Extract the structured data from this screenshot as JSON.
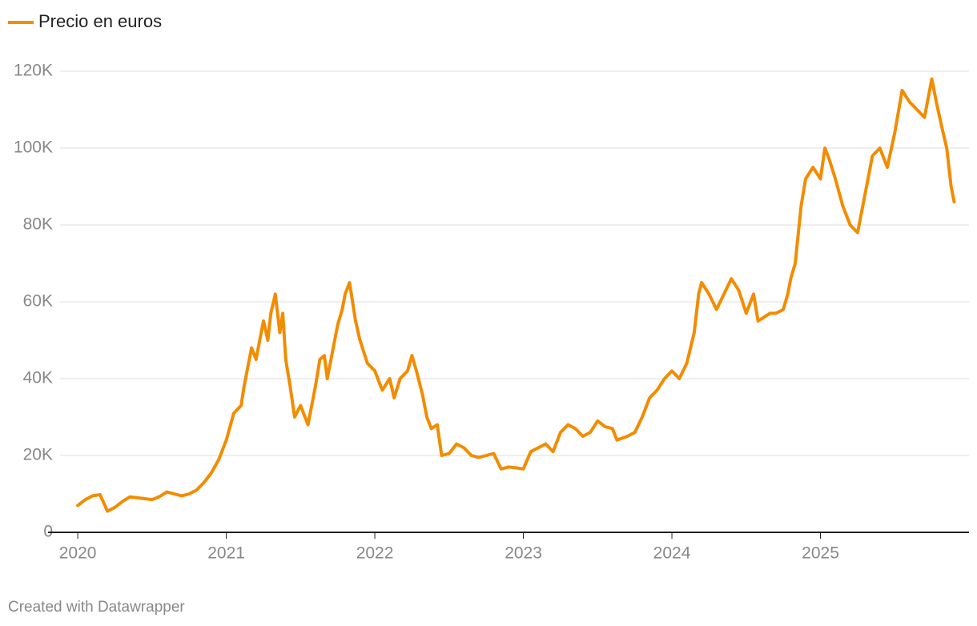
{
  "chart_data": {
    "type": "line",
    "series": [
      {
        "name": "Precio en euros",
        "color": "#f28c00",
        "values": [
          7000,
          8500,
          9500,
          9800,
          5500,
          6500,
          8000,
          9200,
          9000,
          8500,
          9300,
          10500,
          10000,
          9500,
          10000,
          11000,
          13000,
          15500,
          19000,
          24000,
          31000,
          33000,
          38000,
          48000,
          45000,
          55000,
          50000,
          57000,
          62000,
          52000,
          57000,
          45000,
          38000,
          30000,
          33000,
          28000,
          38000,
          45000,
          46000,
          40000,
          48000,
          54000,
          58000,
          62000,
          65000,
          55000,
          50000,
          44000,
          42000,
          37000,
          40000,
          35000,
          40000,
          42000,
          46000,
          42000,
          36000,
          30000,
          27000,
          28000,
          20000,
          20500,
          23000,
          22000,
          20000,
          19500,
          20000,
          20500,
          16500,
          17000,
          16800,
          16500,
          21000,
          22000,
          23000,
          21000,
          26000,
          28000,
          27000,
          25000,
          26000,
          29000,
          27500,
          27000,
          24000,
          25000,
          26000,
          30000,
          35000,
          37000,
          40000,
          42000,
          40000,
          44000,
          52000,
          62000,
          65000,
          62000,
          58000,
          62000,
          66000,
          63000,
          57000,
          62000,
          55000,
          56000,
          57000,
          57000,
          58000,
          62000,
          66000,
          70000,
          85000,
          92000,
          95000,
          92000,
          100000,
          97000,
          92000,
          85000,
          80000,
          78000,
          88000,
          98000,
          100000,
          95000,
          104000,
          115000,
          112000,
          110000,
          108000,
          118000,
          112000,
          105000,
          100000,
          90000,
          86000
        ]
      }
    ],
    "x": [
      2020.0,
      2020.05,
      2020.1,
      2020.15,
      2020.2,
      2020.25,
      2020.3,
      2020.35,
      2020.4,
      2020.5,
      2020.55,
      2020.6,
      2020.65,
      2020.7,
      2020.75,
      2020.8,
      2020.85,
      2020.9,
      2020.95,
      2021.0,
      2021.05,
      2021.1,
      2021.12,
      2021.17,
      2021.2,
      2021.25,
      2021.28,
      2021.3,
      2021.33,
      2021.36,
      2021.38,
      2021.4,
      2021.43,
      2021.46,
      2021.5,
      2021.55,
      2021.6,
      2021.63,
      2021.66,
      2021.68,
      2021.72,
      2021.75,
      2021.78,
      2021.8,
      2021.83,
      2021.87,
      2021.9,
      2021.95,
      2022.0,
      2022.05,
      2022.1,
      2022.13,
      2022.17,
      2022.22,
      2022.25,
      2022.28,
      2022.32,
      2022.35,
      2022.38,
      2022.42,
      2022.45,
      2022.5,
      2022.55,
      2022.6,
      2022.65,
      2022.7,
      2022.75,
      2022.8,
      2022.85,
      2022.9,
      2022.95,
      2023.0,
      2023.05,
      2023.1,
      2023.15,
      2023.2,
      2023.25,
      2023.3,
      2023.35,
      2023.4,
      2023.45,
      2023.5,
      2023.55,
      2023.6,
      2023.63,
      2023.7,
      2023.75,
      2023.8,
      2023.85,
      2023.9,
      2023.95,
      2024.0,
      2024.05,
      2024.1,
      2024.15,
      2024.18,
      2024.2,
      2024.25,
      2024.3,
      2024.35,
      2024.4,
      2024.45,
      2024.5,
      2024.55,
      2024.58,
      2024.62,
      2024.66,
      2024.7,
      2024.75,
      2024.78,
      2024.8,
      2024.83,
      2024.87,
      2024.9,
      2024.95,
      2025.0,
      2025.03,
      2025.06,
      2025.1,
      2025.15,
      2025.2,
      2025.25,
      2025.3,
      2025.35,
      2025.4,
      2025.45,
      2025.5,
      2025.55,
      2025.6,
      2025.65,
      2025.7,
      2025.75,
      2025.78,
      2025.82,
      2025.85,
      2025.88,
      2025.9
    ],
    "xlim": [
      2019.8,
      2026
    ],
    "xticks": [
      2020,
      2021,
      2022,
      2023,
      2024,
      2025
    ],
    "ylim": [
      0,
      125000
    ],
    "yticks": [
      0,
      {
        "value": 20000,
        "label": "20K"
      },
      {
        "value": 40000,
        "label": "40K"
      },
      {
        "value": 60000,
        "label": "60K"
      },
      {
        "value": 80000,
        "label": "80K"
      },
      {
        "value": 100000,
        "label": "100K"
      },
      {
        "value": 120000,
        "label": "120K"
      }
    ],
    "grid": true,
    "credit": "Created with Datawrapper"
  }
}
